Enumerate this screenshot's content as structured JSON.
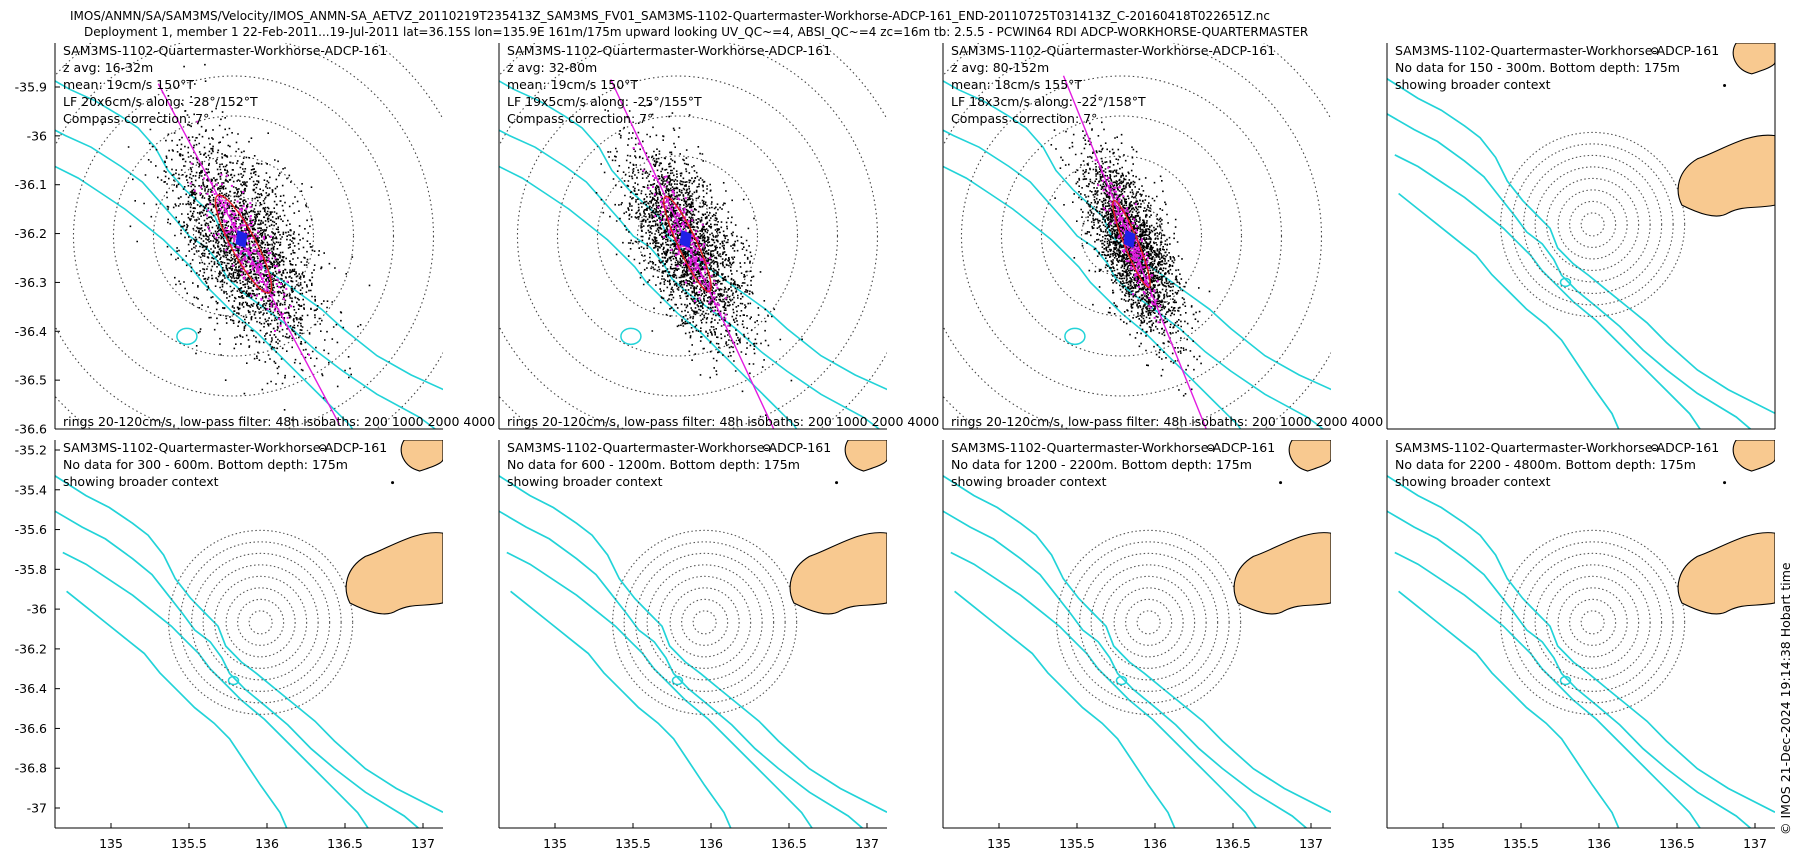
{
  "header": {
    "line1": "IMOS/ANMN/SA/SAM3MS/Velocity/IMOS_ANMN-SA_AETVZ_20110219T235413Z_SAM3MS_FV01_SAM3MS-1102-Quartermaster-Workhorse-ADCP-161_END-20110725T031413Z_C-20160418T022651Z.nc",
    "line2": "Deployment 1, member 1 22-Feb-2011...19-Jul-2011 lat=36.15S lon=135.9E 161m/175m upward looking UV_QC~=4, ABSI_QC~=4 zc=16m tb: 2.5.5 - PCWIN64 RDI ADCP-WORKHORSE-QUARTERMASTER"
  },
  "credit": "© IMOS 21-Dec-2024 19:14:38 Hobart time",
  "colors": {
    "isobath": "#22d3d8",
    "land": "#f8c990",
    "points": "#000000",
    "lowpass": "#e21ce0",
    "mean": "#2020e6",
    "ellipse": "#e02020"
  },
  "chart_data": [
    {
      "type": "scatter",
      "lines": [
        "SAM3MS-1102-Quartermaster-Workhorse-ADCP-161",
        "z avg: 16-32m",
        "mean: 19cm/s 150°T",
        "LF 20x6cm/s along: -28°/152°T",
        "Compass correction: 7°"
      ],
      "footer": "rings 20-120cm/s, low-pass filter: 48h isobaths: 200 1000 2000 4000",
      "center": [
        135.85,
        -36.2
      ],
      "principal_axis_deg": 152,
      "spread": [
        1.0,
        0.5
      ],
      "yticks": [
        "-35.9",
        "-36",
        "-36.1",
        "-36.2",
        "-36.3",
        "-36.4",
        "-36.5",
        "-36.6"
      ],
      "ylim": [
        -36.6,
        -35.85
      ]
    },
    {
      "type": "scatter",
      "lines": [
        "SAM3MS-1102-Quartermaster-Workhorse-ADCP-161",
        "z avg: 32-80m",
        "mean: 19cm/s 150°T",
        "LF 19x5cm/s along: -25°/155°T",
        "Compass correction: 7°"
      ],
      "footer": "rings 20-120cm/s, low-pass filter: 48h isobaths: 200 1000 2000 4000",
      "center": [
        135.85,
        -36.2
      ],
      "principal_axis_deg": 155,
      "spread": [
        0.95,
        0.38
      ]
    },
    {
      "type": "scatter",
      "lines": [
        "SAM3MS-1102-Quartermaster-Workhorse-ADCP-161",
        "z avg: 80-152m",
        "mean: 18cm/s 155°T",
        "LF 18x3cm/s along: -22°/158°T",
        "Compass correction: 7°"
      ],
      "footer": "rings 20-120cm/s, low-pass filter: 48h isobaths: 200 1000 2000 4000",
      "center": [
        135.85,
        -36.2
      ],
      "principal_axis_deg": 158,
      "spread": [
        0.85,
        0.28
      ]
    },
    {
      "type": "map",
      "lines": [
        "SAM3MS-1102-Quartermaster-Workhorse-ADCP-161",
        "No data for 150 - 300m. Bottom depth: 175m",
        "showing broader context"
      ]
    },
    {
      "type": "map",
      "lines": [
        "SAM3MS-1102-Quartermaster-Workhorse-ADCP-161",
        "No data for 300 - 600m. Bottom depth: 175m",
        "showing broader context"
      ],
      "yticks": [
        "-35.2",
        "-35.4",
        "-35.6",
        "-35.8",
        "-36",
        "-36.2",
        "-36.4",
        "-36.6",
        "-36.8",
        "-37"
      ],
      "xticks": [
        "135",
        "135.5",
        "136",
        "136.5",
        "137"
      ],
      "xlim": [
        134.65,
        137.2
      ],
      "ylim": [
        -37.1,
        -35.15
      ]
    },
    {
      "type": "map",
      "lines": [
        "SAM3MS-1102-Quartermaster-Workhorse-ADCP-161",
        "No data for 600 - 1200m. Bottom depth: 175m",
        "showing broader context"
      ],
      "xticks": [
        "135",
        "135.5",
        "136",
        "136.5",
        "137"
      ]
    },
    {
      "type": "map",
      "lines": [
        "SAM3MS-1102-Quartermaster-Workhorse-ADCP-161",
        "No data for 1200 - 2200m. Bottom depth: 175m",
        "showing broader context"
      ],
      "xticks": [
        "135",
        "135.5",
        "136",
        "136.5",
        "137"
      ]
    },
    {
      "type": "map",
      "lines": [
        "SAM3MS-1102-Quartermaster-Workhorse-ADCP-161",
        "No data for 2200 - 4800m. Bottom depth: 175m",
        "showing broader context"
      ],
      "xticks": [
        "135",
        "135.5",
        "136",
        "136.5",
        "137"
      ]
    }
  ]
}
